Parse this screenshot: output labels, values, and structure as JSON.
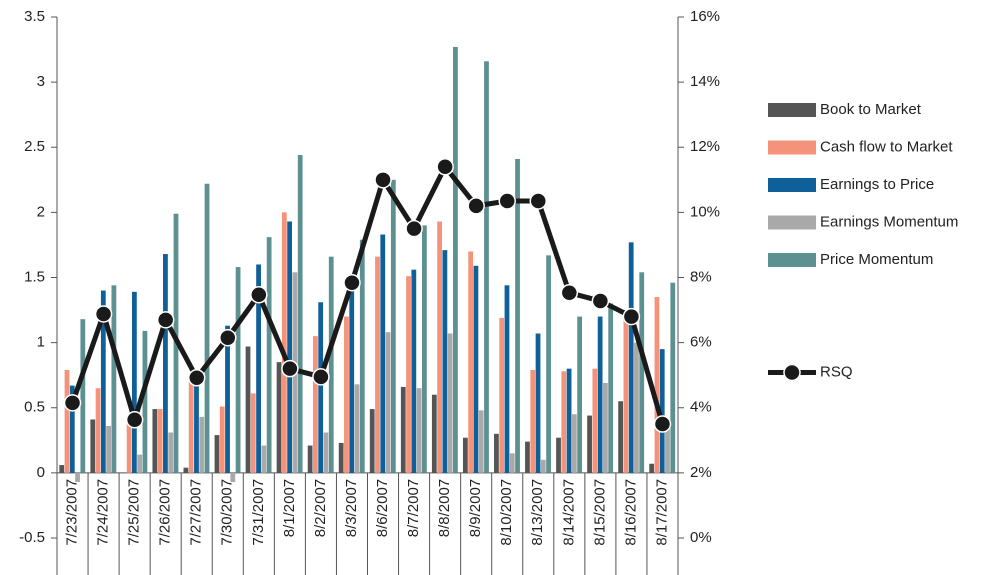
{
  "chart_data": {
    "type": "bar",
    "categories": [
      "7/23/2007",
      "7/24/2007",
      "7/25/2007",
      "7/26/2007",
      "7/27/2007",
      "7/30/2007",
      "7/31/2007",
      "8/1/2007",
      "8/2/2007",
      "8/3/2007",
      "8/6/2007",
      "8/7/2007",
      "8/8/2007",
      "8/9/2007",
      "8/10/2007",
      "8/13/2007",
      "8/14/2007",
      "8/15/2007",
      "8/16/2007",
      "8/17/2007"
    ],
    "series": [
      {
        "name": "Book to Market",
        "color": "#555555",
        "values": [
          0.06,
          0.41,
          0,
          0.49,
          0.04,
          0.29,
          0.97,
          0.85,
          0.21,
          0.23,
          0.49,
          0.66,
          0.6,
          0.27,
          0.3,
          0.24,
          0.27,
          0.44,
          0.55,
          0.07
        ]
      },
      {
        "name": "Cash flow to Market",
        "color": "#f4937a",
        "values": [
          0.79,
          0.65,
          0.38,
          0.49,
          0.75,
          0.51,
          0.61,
          2.0,
          1.05,
          1.2,
          1.66,
          1.51,
          1.93,
          1.7,
          1.19,
          0.79,
          0.78,
          0.8,
          1.25,
          1.35
        ]
      },
      {
        "name": "Earnings to Price",
        "color": "#0f5f99",
        "values": [
          0.67,
          1.4,
          1.39,
          1.68,
          0.75,
          1.13,
          1.6,
          1.93,
          1.31,
          1.4,
          1.83,
          1.56,
          1.71,
          1.59,
          1.44,
          1.07,
          0.8,
          1.2,
          1.77,
          0.95
        ]
      },
      {
        "name": "Earnings Momentum",
        "color": "#a9a9a9",
        "values": [
          -0.07,
          0.36,
          0.14,
          0.31,
          0.43,
          -0.07,
          0.21,
          1.54,
          0.31,
          0.68,
          1.08,
          0.65,
          1.07,
          0.48,
          0.15,
          0.1,
          0.45,
          0.69,
          1.0,
          0.35
        ]
      },
      {
        "name": "Price Momentum",
        "color": "#5d9090",
        "values": [
          1.18,
          1.44,
          1.09,
          1.99,
          2.22,
          1.58,
          1.81,
          2.44,
          1.66,
          1.79,
          2.25,
          1.9,
          3.27,
          3.16,
          2.41,
          1.67,
          1.2,
          1.3,
          1.54,
          1.46
        ]
      },
      {
        "name": "RSQ",
        "type": "line",
        "axis": "y2",
        "color": "#1a1a1a",
        "values": [
          4.15,
          6.88,
          3.63,
          6.7,
          4.92,
          6.15,
          7.47,
          5.2,
          4.95,
          7.84,
          11.0,
          9.5,
          11.4,
          10.2,
          10.35,
          10.35,
          7.53,
          7.28,
          6.8,
          3.5
        ]
      }
    ],
    "ylim": [
      -0.5,
      3.5
    ],
    "yticks": [
      -0.5,
      0,
      0.5,
      1,
      1.5,
      2,
      2.5,
      3,
      3.5
    ],
    "y2lim": [
      0,
      16
    ],
    "y2ticks": [
      {
        "value": 0,
        "label": "0%"
      },
      {
        "value": 2,
        "label": "2%"
      },
      {
        "value": 4,
        "label": "4%"
      },
      {
        "value": 6,
        "label": "6%"
      },
      {
        "value": 8,
        "label": "8%"
      },
      {
        "value": 10,
        "label": "10%"
      },
      {
        "value": 12,
        "label": "12%"
      },
      {
        "value": 14,
        "label": "14%"
      },
      {
        "value": 16,
        "label": "16%"
      }
    ],
    "legend": "right"
  }
}
